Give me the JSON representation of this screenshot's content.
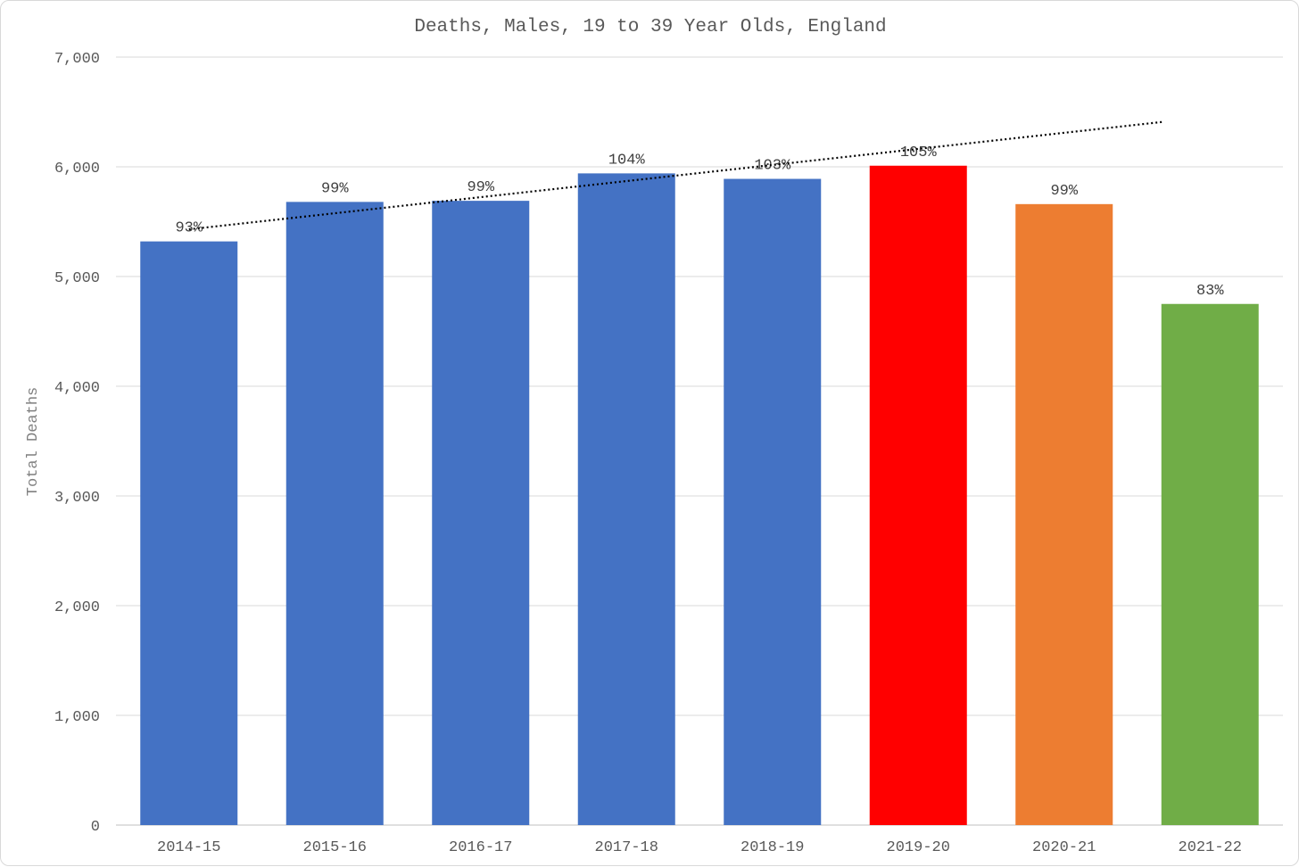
{
  "chart_data": {
    "type": "bar",
    "title": "Deaths, Males, 19 to 39 Year Olds, England",
    "xlabel": "",
    "ylabel": "Total Deaths",
    "ylim": [
      0,
      7000
    ],
    "y_ticks": [
      0,
      1000,
      2000,
      3000,
      4000,
      5000,
      6000,
      7000
    ],
    "y_tick_labels": [
      "0",
      "1,000",
      "2,000",
      "3,000",
      "4,000",
      "5,000",
      "6,000",
      "7,000"
    ],
    "categories": [
      "2014-15",
      "2015-16",
      "2016-17",
      "2017-18",
      "2018-19",
      "2019-20",
      "2020-21",
      "2021-22"
    ],
    "values": [
      5320,
      5680,
      5690,
      5940,
      5890,
      6010,
      5660,
      4750
    ],
    "data_labels": [
      "93%",
      "99%",
      "99%",
      "104%",
      "103%",
      "105%",
      "99%",
      "83%"
    ],
    "bar_colors": [
      "#4472C4",
      "#4472C4",
      "#4472C4",
      "#4472C4",
      "#4472C4",
      "#FF0000",
      "#ED7D31",
      "#70AD47"
    ],
    "trendline": {
      "type": "linear",
      "style": "dotted",
      "color": "#000000",
      "start_value": 5430,
      "end_value": 6410
    },
    "grid": true,
    "legend": "none"
  }
}
